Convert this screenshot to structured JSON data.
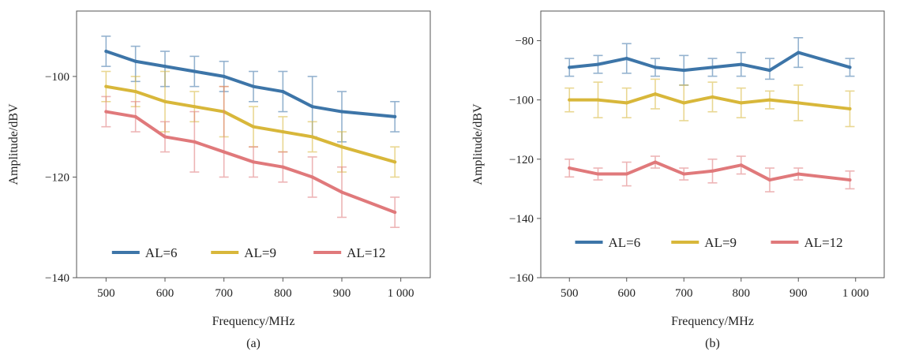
{
  "chart_data": [
    {
      "panel_label": "(a)",
      "type": "line",
      "xlabel": "Frequency/MHz",
      "ylabel": "Amplitude/dBV",
      "xlim": [
        450,
        1050
      ],
      "ylim": [
        -140,
        -87
      ],
      "xticks": [
        500,
        600,
        700,
        800,
        900,
        1000
      ],
      "xtick_labels": [
        "500",
        "600",
        "700",
        "800",
        "900",
        "1 000"
      ],
      "yticks": [
        -100,
        -120,
        -140
      ],
      "ytick_labels": [
        "−100",
        "−120",
        "−140"
      ],
      "grid": false,
      "legend_position": "bottom",
      "x": [
        500,
        550,
        600,
        650,
        700,
        750,
        800,
        850,
        900,
        990
      ],
      "series": [
        {
          "name": "AL=6",
          "color": "#3d75a8",
          "values": [
            -95,
            -97,
            -98,
            -99,
            -100,
            -102,
            -103,
            -106,
            -107,
            -108
          ],
          "err_lower": [
            -98,
            -101,
            -102,
            -102,
            -103,
            -105,
            -107,
            -112,
            -113,
            -111
          ],
          "err_upper": [
            -92,
            -94,
            -95,
            -96,
            -97,
            -99,
            -99,
            -100,
            -103,
            -105
          ]
        },
        {
          "name": "AL=9",
          "color": "#d8b73a",
          "values": [
            -102,
            -103,
            -105,
            -106,
            -107,
            -110,
            -111,
            -112,
            -114,
            -117
          ],
          "err_lower": [
            -105,
            -106,
            -111,
            -109,
            -112,
            -114,
            -115,
            -115,
            -119,
            -120
          ],
          "err_upper": [
            -99,
            -100,
            -99,
            -103,
            -102,
            -106,
            -108,
            -109,
            -111,
            -114
          ]
        },
        {
          "name": "AL=12",
          "color": "#e0797b",
          "values": [
            -107,
            -108,
            -112,
            -113,
            -115,
            -117,
            -118,
            -120,
            -123,
            -127
          ],
          "err_lower": [
            -110,
            -111,
            -115,
            -119,
            -120,
            -120,
            -121,
            -124,
            -128,
            -130
          ],
          "err_upper": [
            -104,
            -105,
            -109,
            -107,
            -102,
            -114,
            -115,
            -116,
            -118,
            -124
          ]
        }
      ]
    },
    {
      "panel_label": "(b)",
      "type": "line",
      "xlabel": "Frequency/MHz",
      "ylabel": "Amplitude/dBV",
      "xlim": [
        450,
        1050
      ],
      "ylim": [
        -160,
        -70
      ],
      "xticks": [
        500,
        600,
        700,
        800,
        900,
        1000
      ],
      "xtick_labels": [
        "500",
        "600",
        "700",
        "800",
        "900",
        "1 000"
      ],
      "yticks": [
        -80,
        -100,
        -120,
        -140,
        -160
      ],
      "ytick_labels": [
        "−80",
        "−100",
        "−120",
        "−140",
        "−160"
      ],
      "grid": false,
      "legend_position": "bottom",
      "x": [
        500,
        550,
        600,
        650,
        700,
        750,
        800,
        850,
        900,
        990
      ],
      "series": [
        {
          "name": "AL=6",
          "color": "#3d75a8",
          "values": [
            -89,
            -88,
            -86,
            -89,
            -90,
            -89,
            -88,
            -90,
            -84,
            -89
          ],
          "err_lower": [
            -92,
            -91,
            -91,
            -92,
            -95,
            -92,
            -92,
            -93,
            -89,
            -92
          ],
          "err_upper": [
            -86,
            -85,
            -81,
            -86,
            -85,
            -86,
            -84,
            -86,
            -79,
            -86
          ]
        },
        {
          "name": "AL=9",
          "color": "#d8b73a",
          "values": [
            -100,
            -100,
            -101,
            -98,
            -101,
            -99,
            -101,
            -100,
            -101,
            -103
          ],
          "err_lower": [
            -104,
            -106,
            -106,
            -103,
            -107,
            -104,
            -106,
            -103,
            -107,
            -109
          ],
          "err_upper": [
            -96,
            -94,
            -96,
            -93,
            -95,
            -94,
            -96,
            -97,
            -95,
            -97
          ]
        },
        {
          "name": "AL=12",
          "color": "#e0797b",
          "values": [
            -123,
            -125,
            -125,
            -121,
            -125,
            -124,
            -122,
            -127,
            -125,
            -127
          ],
          "err_lower": [
            -126,
            -127,
            -129,
            -123,
            -127,
            -128,
            -125,
            -131,
            -127,
            -130
          ],
          "err_upper": [
            -120,
            -123,
            -121,
            -119,
            -123,
            -120,
            -119,
            -123,
            -123,
            -124
          ]
        }
      ]
    }
  ]
}
